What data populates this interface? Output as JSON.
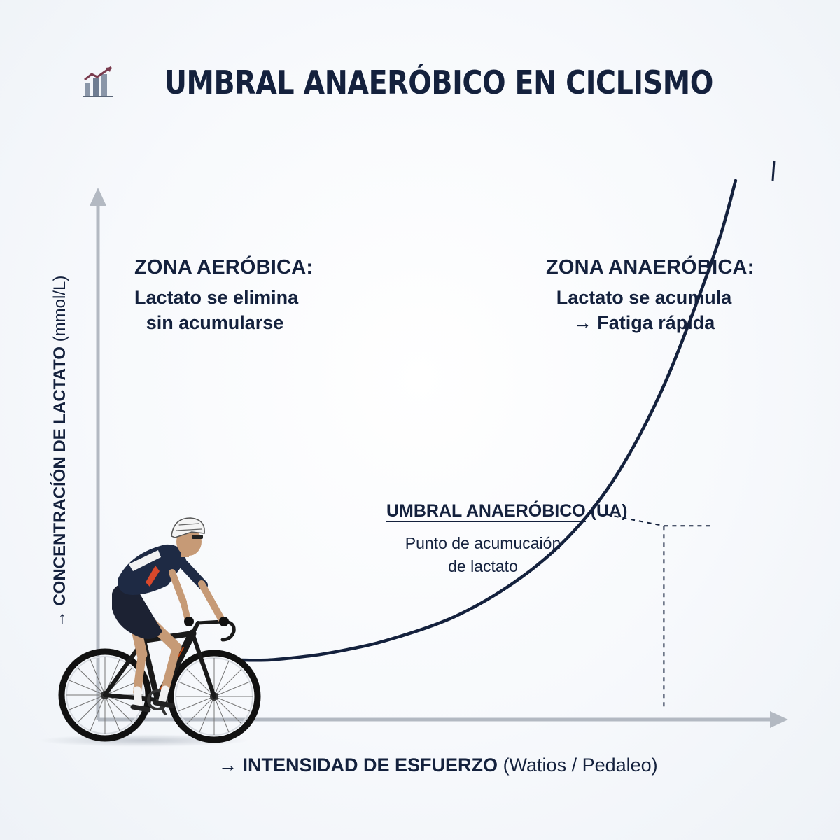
{
  "title": "UMBRAL ANAERÓBICO EN CICLISMO",
  "icon": "bar-chart-trend-icon",
  "chart_data": {
    "type": "line",
    "title": "UMBRAL ANAERÓBICO EN CICLISMO",
    "xlabel": {
      "arrow": "→",
      "main": "INTENSIDAD DE ESFUERZO",
      "unit": "(Watios / Pedaleo)"
    },
    "ylabel": {
      "arrow": "→",
      "main": "CONCENTRACÍÓN DE LACTATO",
      "unit": "(mmol/L)"
    },
    "x_ticks": [],
    "y_ticks": [],
    "grid": false,
    "series": [
      {
        "points": [
          [
            0.0,
            0.0
          ],
          [
            0.05,
            0.0
          ],
          [
            0.1,
            0.005
          ],
          [
            0.15,
            0.012
          ],
          [
            0.2,
            0.022
          ],
          [
            0.25,
            0.034
          ],
          [
            0.3,
            0.05
          ],
          [
            0.35,
            0.068
          ],
          [
            0.4,
            0.09
          ],
          [
            0.45,
            0.118
          ],
          [
            0.5,
            0.152
          ],
          [
            0.55,
            0.192
          ],
          [
            0.6,
            0.24
          ],
          [
            0.65,
            0.3
          ],
          [
            0.7,
            0.375
          ],
          [
            0.75,
            0.47
          ],
          [
            0.8,
            0.585
          ],
          [
            0.85,
            0.725
          ],
          [
            0.9,
            0.88
          ],
          [
            0.93,
            1.0
          ]
        ],
        "color": "#14213d"
      }
    ],
    "threshold": {
      "label": "UMBRAL ANAERÓBICO",
      "abbr": "(UA)",
      "description_lines": [
        "Punto de acumucaión",
        "de lactato"
      ],
      "x": 0.795,
      "y": 0.28
    },
    "zones": [
      {
        "name": "ZONA AERÓBICA:",
        "lines": [
          "Lactato se elimina",
          "sin acumularse"
        ]
      },
      {
        "name": "ZONA ANAERÓBICA:",
        "lines": [
          "Lactato se acumula",
          "→ Fatiga rápida"
        ]
      }
    ]
  },
  "colors": {
    "line": "#14213d",
    "text": "#14213d",
    "axis": "#b3b9c2",
    "background": "#f7f9fc",
    "icon_accent": "#7a3b4e"
  }
}
